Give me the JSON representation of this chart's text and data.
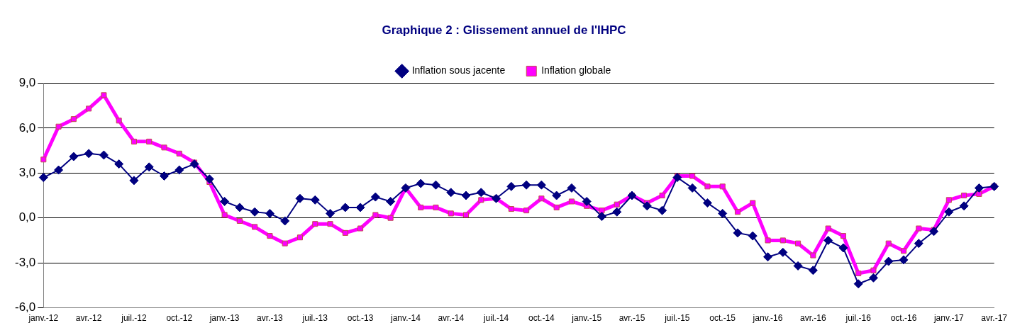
{
  "chart_data": {
    "type": "line",
    "title": "Graphique 2 : Glissement annuel de l'IHPC",
    "categories": [
      "janv.-12",
      null,
      null,
      "avr.-12",
      null,
      null,
      "juil.-12",
      null,
      null,
      "oct.-12",
      null,
      null,
      "janv.-13",
      null,
      null,
      "avr.-13",
      null,
      null,
      "juil.-13",
      null,
      null,
      "oct.-13",
      null,
      null,
      "janv.-14",
      null,
      null,
      "avr.-14",
      null,
      null,
      "juil.-14",
      null,
      null,
      "oct.-14",
      null,
      null,
      "janv.-15",
      null,
      null,
      "avr.-15",
      null,
      null,
      "juil.-15",
      null,
      null,
      "oct.-15",
      null,
      null,
      "janv.-16",
      null,
      null,
      "avr.-16",
      null,
      null,
      "juil.-16",
      null,
      null,
      "oct.-16",
      null,
      null,
      "janv.-17",
      null,
      null,
      "avr.-17"
    ],
    "series": [
      {
        "name": "Inflation sous jacente",
        "color": "#000080",
        "marker": "diamond",
        "values": [
          2.7,
          3.2,
          4.1,
          4.3,
          4.2,
          3.6,
          2.5,
          3.4,
          2.8,
          3.2,
          3.6,
          2.6,
          1.1,
          0.7,
          0.4,
          0.3,
          -0.2,
          1.3,
          1.2,
          0.3,
          0.7,
          0.7,
          1.4,
          1.1,
          2.0,
          2.3,
          2.2,
          1.7,
          1.5,
          1.7,
          1.3,
          2.1,
          2.2,
          2.2,
          1.5,
          2.0,
          1.1,
          0.1,
          0.4,
          1.5,
          0.8,
          0.5,
          2.7,
          2.0,
          1.0,
          0.3,
          -1.0,
          -1.2,
          -2.6,
          -2.3,
          -3.2,
          -3.5,
          -1.5,
          -2.0,
          -4.4,
          -4.0,
          -2.9,
          -2.8,
          -1.7,
          -0.9,
          0.4,
          0.8,
          2.0,
          2.1
        ]
      },
      {
        "name": "Inflation globale",
        "color": "#ff00ff",
        "marker": "square",
        "values": [
          3.9,
          6.1,
          6.6,
          7.3,
          8.2,
          6.5,
          5.1,
          5.1,
          4.7,
          4.3,
          3.7,
          2.4,
          0.2,
          -0.2,
          -0.6,
          -1.2,
          -1.7,
          -1.3,
          -0.4,
          -0.4,
          -1.0,
          -0.7,
          0.2,
          0.0,
          2.0,
          0.7,
          0.7,
          0.3,
          0.2,
          1.2,
          1.3,
          0.6,
          0.5,
          1.3,
          0.7,
          1.1,
          0.8,
          0.5,
          0.9,
          1.5,
          1.0,
          1.5,
          2.8,
          2.8,
          2.1,
          2.1,
          0.4,
          1.0,
          -1.5,
          -1.5,
          -1.7,
          -2.5,
          -0.7,
          -1.2,
          -3.7,
          -3.5,
          -1.7,
          -2.2,
          -0.7,
          -0.8,
          1.2,
          1.5,
          1.6,
          2.1
        ]
      }
    ],
    "ylim": [
      -6,
      9
    ],
    "yticks": [
      {
        "value": -6,
        "label": "-6,0"
      },
      {
        "value": -3,
        "label": "-3,0"
      },
      {
        "value": 0,
        "label": "0,0"
      },
      {
        "value": 3,
        "label": "3,0"
      },
      {
        "value": 6,
        "label": "6,0"
      },
      {
        "value": 9,
        "label": "9,0"
      }
    ],
    "grid": "y",
    "legend": "top"
  }
}
